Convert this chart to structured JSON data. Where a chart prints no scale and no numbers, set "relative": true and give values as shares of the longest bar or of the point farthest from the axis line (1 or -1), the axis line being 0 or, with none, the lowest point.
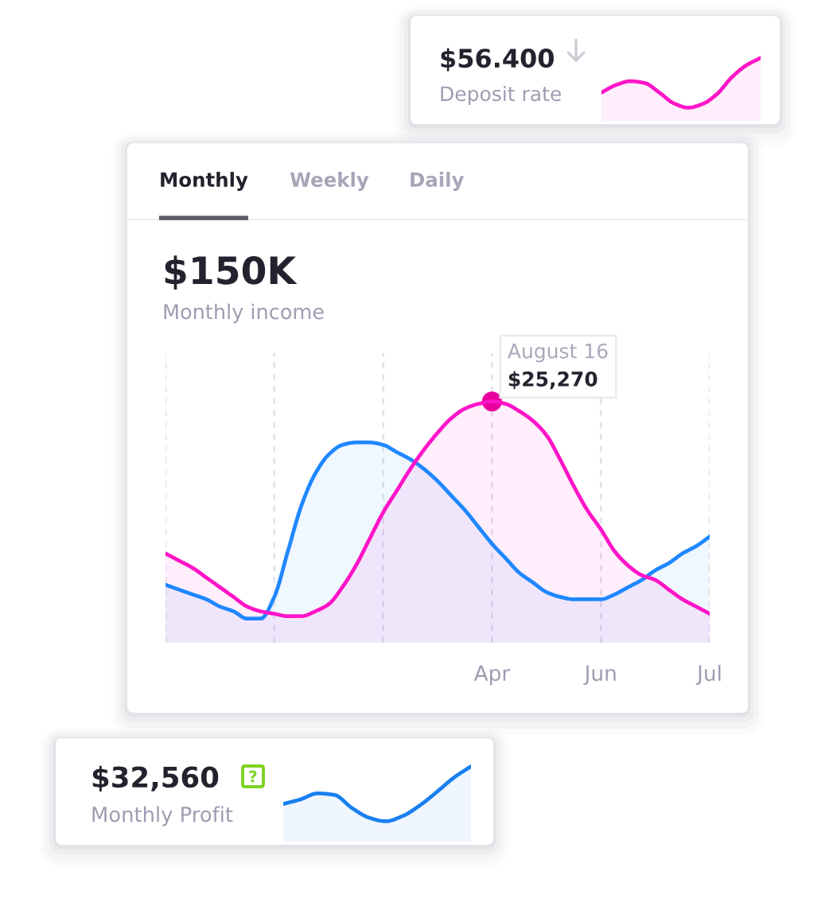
{
  "chart_data": [
    {
      "type": "area",
      "title": "$56.400",
      "subtitle": "Deposit rate",
      "relative": true,
      "categories": [
        null,
        null,
        null,
        null,
        null,
        null,
        null,
        null,
        null,
        null,
        null,
        null
      ],
      "series": [
        {
          "color": "#ff14c8",
          "values": [
            0.45,
            0.57,
            0.63,
            0.6,
            0.45,
            0.28,
            0.21,
            0.27,
            0.43,
            0.69,
            0.88,
            1.0
          ]
        }
      ]
    },
    {
      "type": "area",
      "title": "$150K",
      "subtitle": "Monthly income",
      "relative": true,
      "annotations": [
        "Monthly",
        "Weekly",
        "Daily",
        {
          "text": "August 16",
          "x": "Apr",
          "y": 1.0
        },
        {
          "text": "$25,270",
          "x": "Apr",
          "y": 1.0
        }
      ],
      "categories": [
        null,
        null,
        null,
        null,
        null,
        null,
        null,
        null,
        null,
        null,
        null,
        null,
        null,
        null,
        null,
        null,
        null,
        null,
        null,
        null,
        null,
        null,
        null,
        null,
        "Apr",
        null,
        null,
        null,
        null,
        null,
        null,
        null,
        "Jun",
        null,
        null,
        null,
        null,
        null,
        null,
        null,
        "Jul"
      ],
      "grid": "x",
      "series": [
        {
          "color": "#1f87ff",
          "values": [
            0.24,
            0.22,
            0.2,
            0.18,
            0.15,
            0.13,
            0.1,
            0.1,
            0.19,
            0.38,
            0.57,
            0.7,
            0.78,
            0.82,
            0.83,
            0.83,
            0.82,
            0.79,
            0.76,
            0.72,
            0.67,
            0.61,
            0.55,
            0.48,
            0.41,
            0.35,
            0.29,
            0.25,
            0.21,
            0.19,
            0.18,
            0.18,
            0.18,
            0.2,
            0.23,
            0.26,
            0.3,
            0.33,
            0.37,
            0.4,
            0.44
          ]
        },
        {
          "color": "#ff14c8",
          "values": [
            0.37,
            0.34,
            0.31,
            0.27,
            0.23,
            0.19,
            0.15,
            0.13,
            0.12,
            0.11,
            0.11,
            0.13,
            0.16,
            0.23,
            0.32,
            0.43,
            0.54,
            0.63,
            0.72,
            0.8,
            0.87,
            0.93,
            0.97,
            0.99,
            1.0,
            0.99,
            0.96,
            0.92,
            0.86,
            0.76,
            0.65,
            0.55,
            0.47,
            0.38,
            0.32,
            0.28,
            0.26,
            0.22,
            0.18,
            0.15,
            0.12
          ]
        },
        {
          "type": "scatter",
          "color": "#e8009f",
          "marker": "circle",
          "x": [
            "Apr"
          ],
          "values": [
            1.0
          ]
        }
      ]
    },
    {
      "type": "area",
      "title": "$32,560",
      "subtitle": "Monthly Profit",
      "relative": true,
      "categories": [
        null,
        null,
        null,
        null,
        null,
        null,
        null,
        null,
        null,
        null,
        null,
        null
      ],
      "series": [
        {
          "color": "#1a7ff0",
          "values": [
            0.5,
            0.56,
            0.64,
            0.62,
            0.45,
            0.32,
            0.27,
            0.34,
            0.48,
            0.66,
            0.85,
            1.0
          ]
        }
      ]
    }
  ]
}
